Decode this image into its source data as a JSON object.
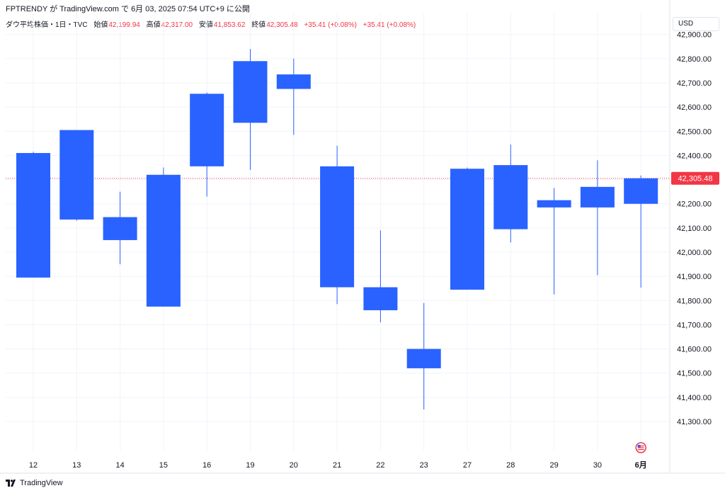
{
  "header": {
    "text": "FPTRENDY が TradingView.com で 6月 03, 2025 07:54 UTC+9 に公開"
  },
  "legend": {
    "symbol": "ダウ平均株価・1日・TVC",
    "open_label": "始値",
    "open": "42,199.94",
    "high_label": "高値",
    "high": "42,317.00",
    "low_label": "安値",
    "low": "41,853.62",
    "close_label": "終値",
    "close": "42,305.48",
    "change": "+35.41 (+0.08%)",
    "change2": "+35.41 (+0.08%)"
  },
  "currency_button": "USD",
  "price_tag": "42,305.48",
  "footer": {
    "brand": "TradingView"
  },
  "colors": {
    "up": "#2962ff",
    "down": "#f23645",
    "grid": "#f0f3fa"
  },
  "chart_data": {
    "type": "candlestick",
    "categories": [
      "12",
      "13",
      "14",
      "15",
      "16",
      "19",
      "20",
      "21",
      "22",
      "23",
      "27",
      "28",
      "29",
      "30",
      "6月"
    ],
    "candles": [
      {
        "o": 41895,
        "h": 42415,
        "l": 41895,
        "c": 42410
      },
      {
        "o": 42135,
        "h": 42505,
        "l": 42130,
        "c": 42505
      },
      {
        "o": 42050,
        "h": 42250,
        "l": 41950,
        "c": 42145
      },
      {
        "o": 41775,
        "h": 42350,
        "l": 41775,
        "c": 42320
      },
      {
        "o": 42355,
        "h": 42660,
        "l": 42230,
        "c": 42655
      },
      {
        "o": 42535,
        "h": 42840,
        "l": 42340,
        "c": 42790
      },
      {
        "o": 42675,
        "h": 42800,
        "l": 42485,
        "c": 42735
      },
      {
        "o": 41855,
        "h": 42440,
        "l": 41785,
        "c": 42355
      },
      {
        "o": 41760,
        "h": 42090,
        "l": 41710,
        "c": 41855
      },
      {
        "o": 41520,
        "h": 41790,
        "l": 41350,
        "c": 41600
      },
      {
        "o": 41845,
        "h": 42350,
        "l": 41845,
        "c": 42345
      },
      {
        "o": 42095,
        "h": 42445,
        "l": 42040,
        "c": 42360
      },
      {
        "o": 42185,
        "h": 42265,
        "l": 41825,
        "c": 42215
      },
      {
        "o": 42185,
        "h": 42380,
        "l": 41905,
        "c": 42270
      },
      {
        "o": 42199.94,
        "h": 42317.0,
        "l": 41853.62,
        "c": 42305.48
      }
    ],
    "ylim": [
      41180,
      42990
    ],
    "yticks": [
      {
        "v": 41300,
        "label": "41,300.00"
      },
      {
        "v": 41400,
        "label": "41,400.00"
      },
      {
        "v": 41500,
        "label": "41,500.00"
      },
      {
        "v": 41600,
        "label": "41,600.00"
      },
      {
        "v": 41700,
        "label": "41,700.00"
      },
      {
        "v": 41800,
        "label": "41,800.00"
      },
      {
        "v": 41900,
        "label": "41,900.00"
      },
      {
        "v": 42000,
        "label": "42,000.00"
      },
      {
        "v": 42100,
        "label": "42,100.00"
      },
      {
        "v": 42200,
        "label": "42,200.00"
      },
      {
        "v": 42300,
        "label": "42,300.00"
      },
      {
        "v": 42400,
        "label": "42,400.00"
      },
      {
        "v": 42500,
        "label": "42,500.00"
      },
      {
        "v": 42600,
        "label": "42,600.00"
      },
      {
        "v": 42700,
        "label": "42,700.00"
      },
      {
        "v": 42800,
        "label": "42,800.00"
      },
      {
        "v": 42900,
        "label": "42,900.00"
      }
    ],
    "last_price": 42305.48,
    "grid": true
  }
}
